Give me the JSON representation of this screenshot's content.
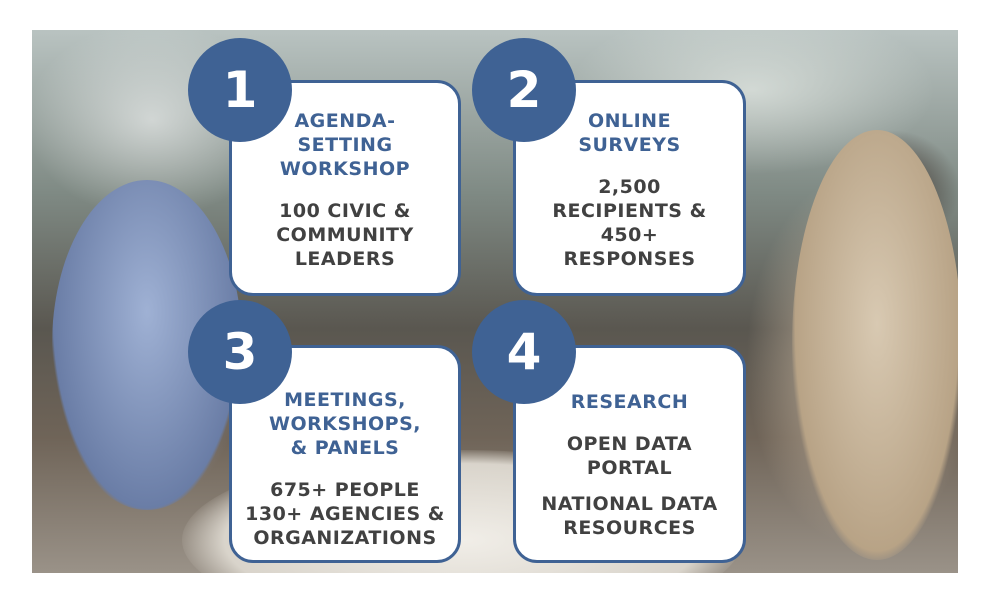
{
  "steps": [
    {
      "number": "1",
      "title": [
        "AGENDA-",
        "SETTING",
        "WORKSHOP"
      ],
      "desc": [
        "100 CIVIC &",
        "COMMUNITY",
        "LEADERS"
      ]
    },
    {
      "number": "2",
      "title": [
        "ONLINE",
        "SURVEYS"
      ],
      "desc": [
        "2,500",
        "RECIPIENTS &",
        "450+",
        "RESPONSES"
      ]
    },
    {
      "number": "3",
      "title": [
        "MEETINGS,",
        "WORKSHOPS,",
        "& PANELS"
      ],
      "desc": [
        "675+ PEOPLE",
        "130+ AGENCIES &",
        "ORGANIZATIONS"
      ]
    },
    {
      "number": "4",
      "title": [
        "RESEARCH"
      ],
      "desc": [
        "OPEN DATA",
        "PORTAL"
      ],
      "desc2": [
        "NATIONAL DATA",
        "RESOURCES"
      ]
    }
  ],
  "colors": {
    "accent": "#3f6294",
    "text": "#414141",
    "card_bg": "#ffffff"
  }
}
